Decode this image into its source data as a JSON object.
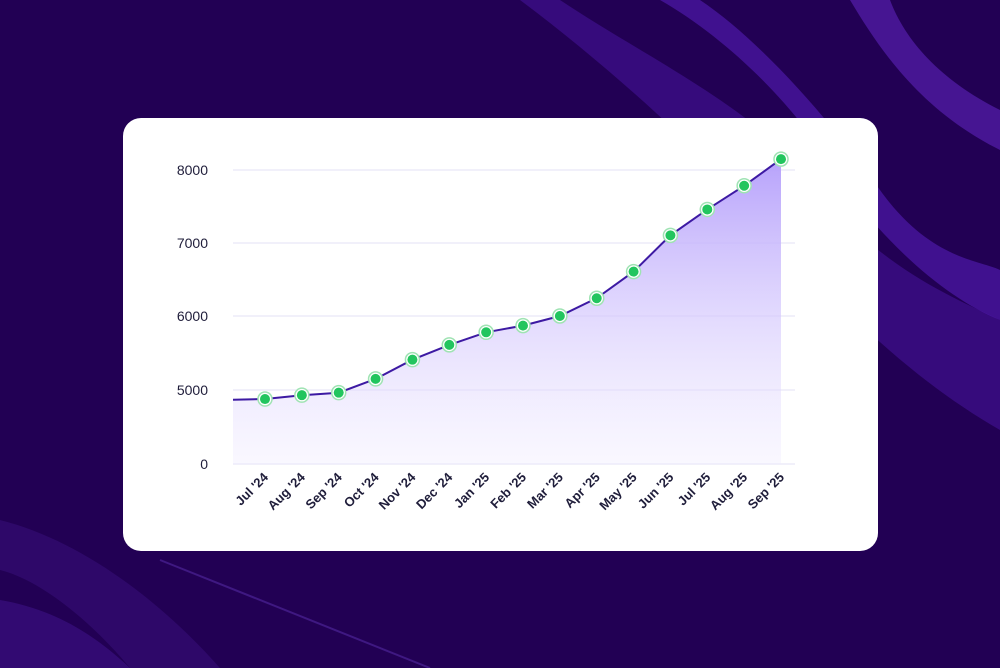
{
  "colors": {
    "background": "#220054",
    "card": "#ffffff",
    "line": "#3d1aa3",
    "fill_top": "#b7a2fb",
    "marker": "#22c55e",
    "grid": "#e3e0f5"
  },
  "chart_data": {
    "type": "area",
    "title": "",
    "xlabel": "",
    "ylabel": "",
    "grid": true,
    "yticks": [
      "8000",
      "7000",
      "6000",
      "5000",
      "0"
    ],
    "categories": [
      "Jul '24",
      "Aug '24",
      "Sep '24",
      "Oct '24",
      "Nov '24",
      "Dec '24",
      "Jan '25",
      "Feb '25",
      "Mar '25",
      "Apr '25",
      "May '25",
      "Jun '25",
      "Jul '25",
      "Aug '25",
      "Sep '25"
    ],
    "values": [
      4390,
      4650,
      4820,
      5150,
      5410,
      5610,
      5780,
      5870,
      6000,
      6240,
      6600,
      7090,
      7440,
      7760,
      8120
    ],
    "start_value": 4340
  }
}
